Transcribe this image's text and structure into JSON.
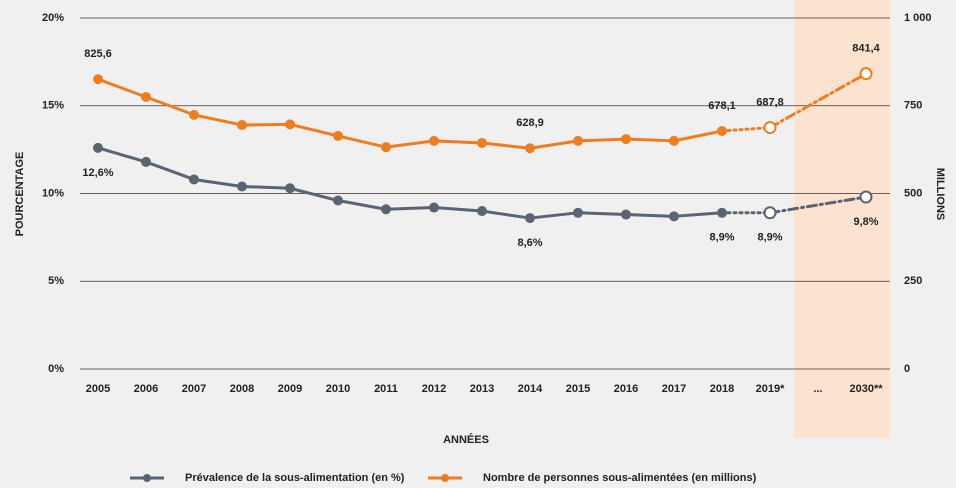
{
  "chart_data": {
    "type": "line",
    "categories": [
      "2005",
      "2006",
      "2007",
      "2008",
      "2009",
      "2010",
      "2011",
      "2012",
      "2013",
      "2014",
      "2015",
      "2016",
      "2017",
      "2018",
      "2019*",
      "...",
      "2030**"
    ],
    "series": [
      {
        "name": "Prévalence de la sous-alimentation (en %)",
        "color": "#5a6472",
        "axis": "y",
        "values": [
          12.6,
          11.8,
          10.8,
          10.4,
          10.3,
          9.6,
          9.1,
          9.2,
          9.0,
          8.6,
          8.9,
          8.8,
          8.7,
          8.9,
          8.9,
          null,
          9.8
        ],
        "value_labels": [
          "12,6%",
          null,
          null,
          null,
          null,
          null,
          null,
          null,
          null,
          "8,6%",
          null,
          null,
          null,
          "8,9%",
          "8,9%",
          null,
          "9,8%"
        ]
      },
      {
        "name": "Nombre de personnes sous-alimentées (en millions)",
        "color": "#ee7d22",
        "axis": "y2",
        "values": [
          825.6,
          775,
          724,
          695,
          697,
          664,
          632,
          650,
          644,
          628.9,
          650,
          655,
          650,
          678.1,
          687.8,
          null,
          841.4
        ],
        "value_labels": [
          "825,6",
          null,
          null,
          null,
          null,
          null,
          null,
          null,
          null,
          "628,9",
          null,
          null,
          null,
          "678,1",
          "687,8",
          null,
          "841,4"
        ]
      }
    ],
    "xlabel": "ANNÉES",
    "ylabel": "POURCENTAGE",
    "y2label": "MILLIONS",
    "ylim": [
      0,
      20
    ],
    "yticks": [
      {
        "value": 0,
        "label": "0%"
      },
      {
        "value": 5,
        "label": "5%"
      },
      {
        "value": 10,
        "label": "10%"
      },
      {
        "value": 15,
        "label": "15%"
      },
      {
        "value": 20,
        "label": "20%"
      }
    ],
    "y2lim": [
      0,
      1000
    ],
    "y2ticks": [
      0,
      250,
      500,
      750,
      {
        "value": 1000,
        "label": "1 000"
      }
    ],
    "grid": true,
    "legend": "bottom"
  }
}
